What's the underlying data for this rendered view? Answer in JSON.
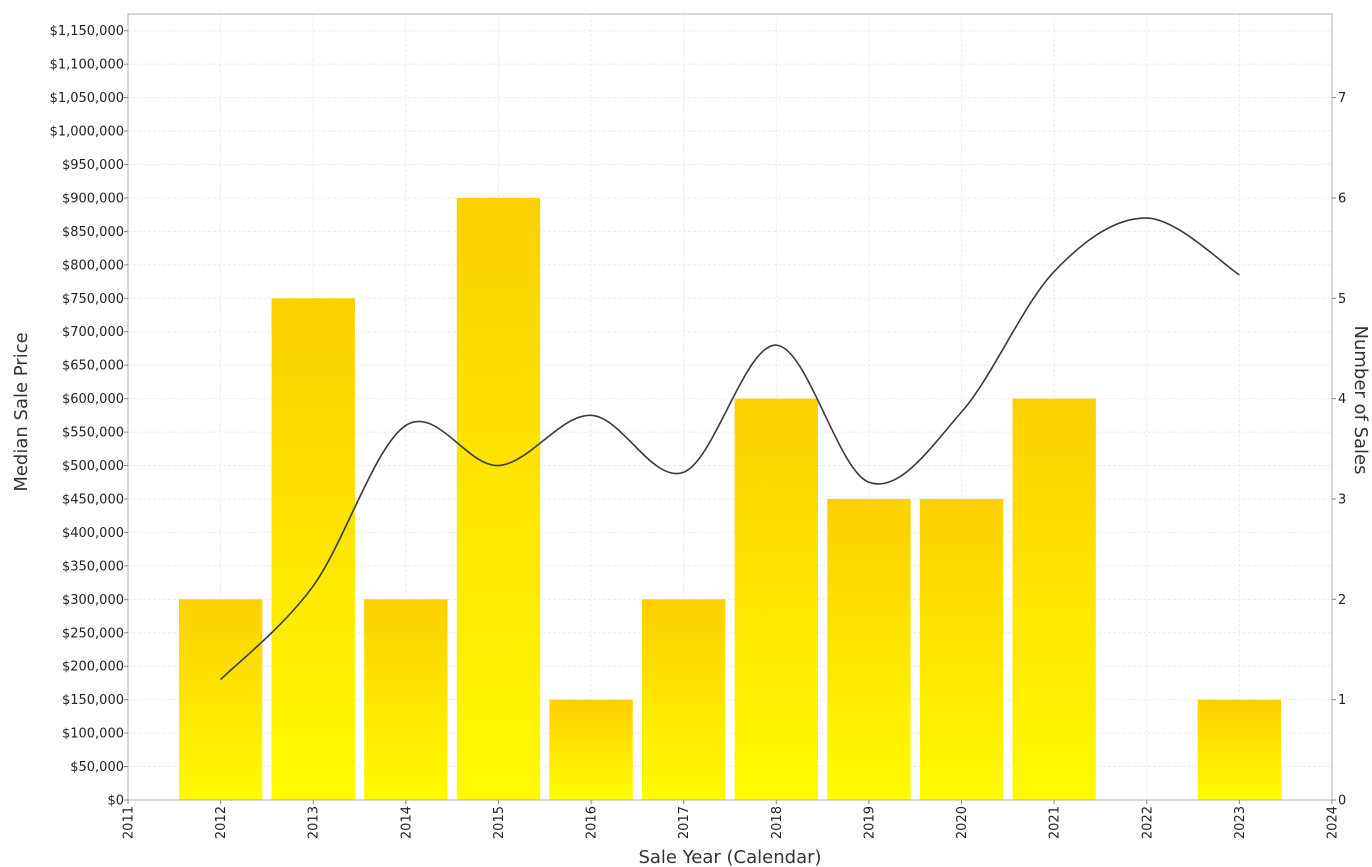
{
  "chart_data": {
    "type": "bar",
    "categories": [
      "2012",
      "2013",
      "2014",
      "2015",
      "2016",
      "2017",
      "2018",
      "2019",
      "2020",
      "2021",
      "2023"
    ],
    "series": [
      {
        "type": "bar",
        "axis": "right",
        "x": [
          2012,
          2013,
          2014,
          2015,
          2016,
          2017,
          2018,
          2019,
          2020,
          2021,
          2023
        ],
        "values": [
          2,
          5,
          2,
          6,
          1,
          2,
          4,
          3,
          3,
          4,
          1
        ]
      },
      {
        "type": "line",
        "axis": "left",
        "x": [
          2012,
          2013,
          2014,
          2015,
          2016,
          2017,
          2018,
          2019,
          2020,
          2021,
          2022,
          2023
        ],
        "values": [
          180000,
          320000,
          560000,
          500000,
          575000,
          490000,
          680000,
          475000,
          580000,
          790000,
          870000,
          785000
        ]
      }
    ],
    "xlabel": "Sale Year (Calendar)",
    "ylabel": "Median Sale Price",
    "y2label": "Number of Sales",
    "xlim": [
      2011,
      2024
    ],
    "ylim": [
      0,
      1175000
    ],
    "y2lim": [
      0,
      7.833
    ],
    "x_ticks": [
      "2011",
      "2012",
      "2013",
      "2014",
      "2015",
      "2016",
      "2017",
      "2018",
      "2019",
      "2020",
      "2021",
      "2022",
      "2023",
      "2024"
    ],
    "y_ticks": [
      {
        "value": 0,
        "label": "$0"
      },
      {
        "value": 50000,
        "label": "$50,000"
      },
      {
        "value": 100000,
        "label": "$100,000"
      },
      {
        "value": 150000,
        "label": "$150,000"
      },
      {
        "value": 200000,
        "label": "$200,000"
      },
      {
        "value": 250000,
        "label": "$250,000"
      },
      {
        "value": 300000,
        "label": "$300,000"
      },
      {
        "value": 350000,
        "label": "$350,000"
      },
      {
        "value": 400000,
        "label": "$400,000"
      },
      {
        "value": 450000,
        "label": "$450,000"
      },
      {
        "value": 500000,
        "label": "$500,000"
      },
      {
        "value": 550000,
        "label": "$550,000"
      },
      {
        "value": 600000,
        "label": "$600,000"
      },
      {
        "value": 650000,
        "label": "$650,000"
      },
      {
        "value": 700000,
        "label": "$700,000"
      },
      {
        "value": 750000,
        "label": "$750,000"
      },
      {
        "value": 800000,
        "label": "$800,000"
      },
      {
        "value": 850000,
        "label": "$850,000"
      },
      {
        "value": 900000,
        "label": "$900,000"
      },
      {
        "value": 950000,
        "label": "$950,000"
      },
      {
        "value": 1000000,
        "label": "$1,000,000"
      },
      {
        "value": 1050000,
        "label": "$1,050,000"
      },
      {
        "value": 1100000,
        "label": "$1,100,000"
      },
      {
        "value": 1150000,
        "label": "$1,150,000"
      }
    ],
    "y2_ticks": [
      "0",
      "1",
      "2",
      "3",
      "4",
      "5",
      "6",
      "7"
    ],
    "grid": true,
    "colors": {
      "bar_top": "#FDD000",
      "bar_bottom": "#FFFB00",
      "line": "#3a3a3a",
      "frame": "#b0b0b0"
    }
  }
}
